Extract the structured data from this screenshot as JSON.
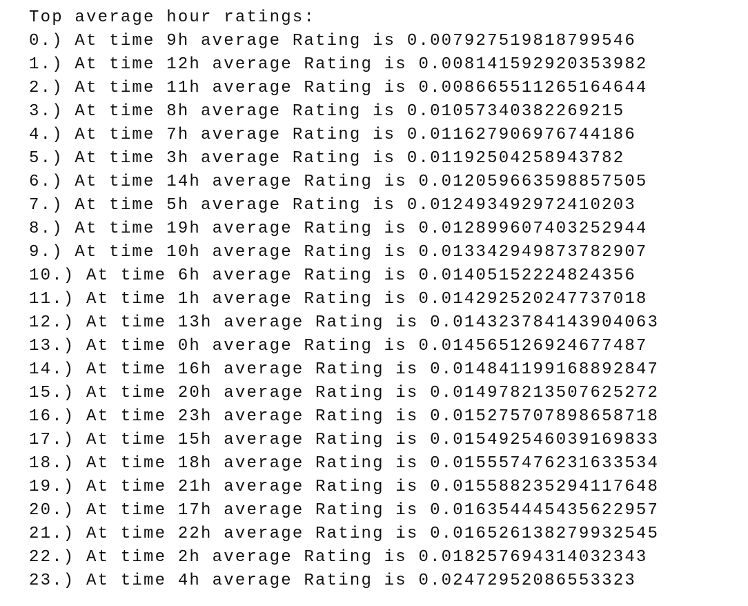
{
  "header": {
    "title": "Top average hour ratings:"
  },
  "lines": [
    "0.) At time 9h average Rating is 0.007927519818799546",
    "1.) At time 12h average Rating is 0.008141592920353982",
    "2.) At time 11h average Rating is 0.008665511265164644",
    "3.) At time 8h average Rating is 0.01057340382269215",
    "4.) At time 7h average Rating is 0.011627906976744186",
    "5.) At time 3h average Rating is 0.01192504258943782",
    "6.) At time 14h average Rating is 0.012059663598857505",
    "7.) At time 5h average Rating is 0.012493492972410203",
    "8.) At time 19h average Rating is 0.012899607403252944",
    "9.) At time 10h average Rating is 0.013342949873782907",
    "10.) At time 6h average Rating is 0.01405152224824356",
    "11.) At time 1h average Rating is 0.014292520247737018",
    "12.) At time 13h average Rating is 0.014323784143904063",
    "13.) At time 0h average Rating is 0.014565126924677487",
    "14.) At time 16h average Rating is 0.014841199168892847",
    "15.) At time 20h average Rating is 0.014978213507625272",
    "16.) At time 23h average Rating is 0.015275707898658718",
    "17.) At time 15h average Rating is 0.015492546039169833",
    "18.) At time 18h average Rating is 0.015557476231633534",
    "19.) At time 21h average Rating is 0.015588235294117648",
    "20.) At time 17h average Rating is 0.016354445435622957",
    "21.) At time 22h average Rating is 0.016526138279932545",
    "22.) At time 2h average Rating is 0.018257694314032343",
    "23.) At time 4h average Rating is 0.02472952086553323"
  ]
}
